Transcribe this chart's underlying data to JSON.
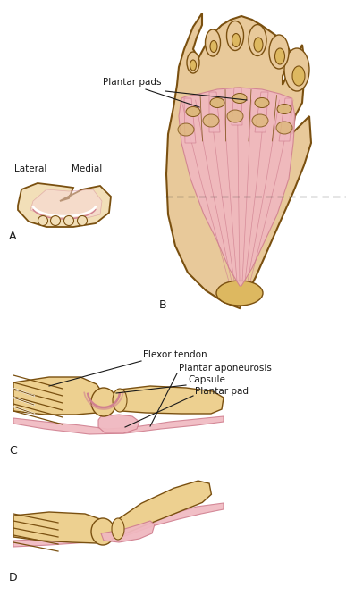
{
  "bg_color": "#ffffff",
  "skin_color": "#C8965A",
  "skin_light": "#DDB87A",
  "skin_fill": "#E8C99A",
  "skin_pale": "#F2DFB8",
  "pink_color": "#F0B8C0",
  "pink_dark": "#D08090",
  "pink_light": "#F8D8DC",
  "bone_color": "#C8A040",
  "bone_light": "#DDB860",
  "bone_pale": "#EDD090",
  "outline_color": "#7A5010",
  "text_color": "#1a1a1a",
  "label_A": "A",
  "label_B": "B",
  "label_C": "C",
  "label_D": "D",
  "label_lateral": "Lateral",
  "label_medial": "Medial",
  "label_plantar_pads": "Plantar pads",
  "label_flexor": "Flexor tendon",
  "label_plantar_apo": "Plantar aponeurosis",
  "label_capsule": "Capsule",
  "label_plantar_pad": "Plantar pad",
  "fig_width": 3.87,
  "fig_height": 6.76,
  "dpi": 100
}
